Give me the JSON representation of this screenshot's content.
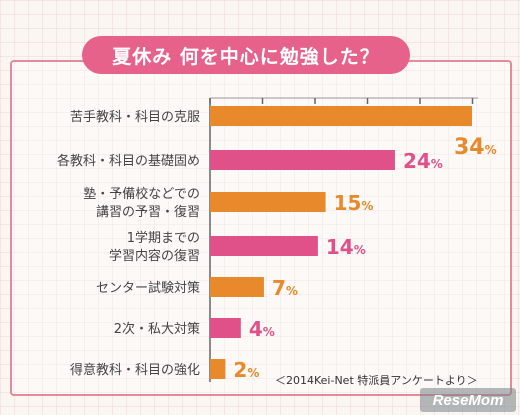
{
  "colors": {
    "orange": "#e8892b",
    "pink": "#e0518a",
    "frame": "#e58a98",
    "title_bg": "#e6628a"
  },
  "chart_data": {
    "type": "bar",
    "orientation": "horizontal",
    "title": "夏休み 何を中心に勉強した？",
    "categories": [
      "苦手教科・科目の克服",
      "各教科・科目の基礎固め",
      "塾・予備校などでの\n講習の予習・復習",
      "1学期までの\n学習内容の復習",
      "センター試験対策",
      "2次・私大対策",
      "得意教科・科目の強化"
    ],
    "values": [
      34,
      24,
      15,
      14,
      7,
      4,
      2
    ],
    "value_labels": [
      "34",
      "24",
      "15",
      "14",
      "7",
      "4",
      "2"
    ],
    "unit": "%",
    "bar_colors": [
      "orange",
      "pink",
      "orange",
      "pink",
      "orange",
      "pink",
      "orange"
    ],
    "xlim": [
      0,
      34
    ],
    "grid": false,
    "legend": "none"
  },
  "source_note": "＜2014Kei-Net 特派員アンケートより＞",
  "logo_text": "ReseMom"
}
